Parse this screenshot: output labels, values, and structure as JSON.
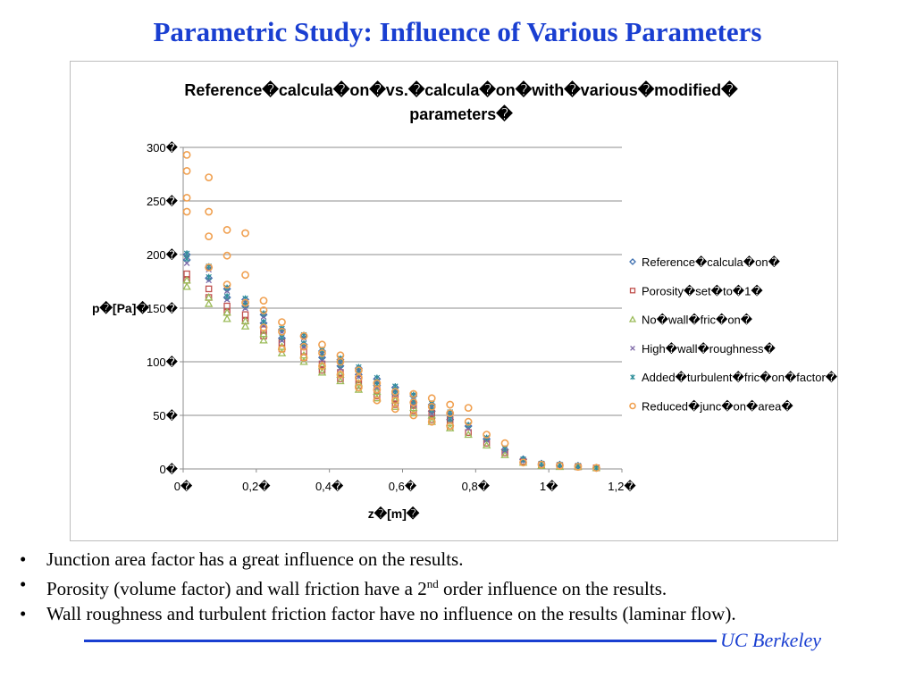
{
  "slide": {
    "title": "Parametric Study: Influence of Various Parameters",
    "bullets": [
      {
        "text_before": "Junction area factor has a great influence on the results.",
        "sup": "",
        "text_after": ""
      },
      {
        "text_before": "Porosity (volume factor) and wall friction have a 2",
        "sup": "nd",
        "text_after": " order influence on the results."
      },
      {
        "text_before": "Wall roughness and turbulent friction factor have no influence on the results (laminar flow).",
        "sup": "",
        "text_after": ""
      }
    ],
    "bullet_char": "•",
    "footer": "UC Berkeley",
    "brand_color": "#1a3fd1"
  },
  "chart_data": {
    "type": "scatter",
    "title_lines": [
      "Reference�calcula�on�vs.�calcula�on�with�various�modified�",
      "parameters�"
    ],
    "xlabel": "z�[m]�",
    "ylabel": "p�[Pa]�",
    "xlim": [
      0,
      1.2
    ],
    "ylim": [
      0,
      300
    ],
    "x_ticks": [
      0,
      0.2,
      0.4,
      0.6,
      0.8,
      1,
      1.2
    ],
    "x_tick_labels": [
      "0�",
      "0,2�",
      "0,4�",
      "0,6�",
      "0,8�",
      "1�",
      "1,2�"
    ],
    "y_ticks": [
      0,
      50,
      100,
      150,
      200,
      250,
      300
    ],
    "y_tick_labels": [
      "0�",
      "50�",
      "100�",
      "150�",
      "200�",
      "250�",
      "300�"
    ],
    "grid": "horizontal",
    "legend_position": "right",
    "series": [
      {
        "name": "Reference�calcula�on�",
        "marker": "diamond",
        "color": "#3d6fb0",
        "x": [
          0.01,
          0.01,
          0.07,
          0.07,
          0.12,
          0.12,
          0.17,
          0.17,
          0.22,
          0.22,
          0.27,
          0.27,
          0.33,
          0.33,
          0.38,
          0.38,
          0.43,
          0.43,
          0.48,
          0.48,
          0.53,
          0.53,
          0.58,
          0.58,
          0.63,
          0.63,
          0.68,
          0.68,
          0.73,
          0.73,
          0.78,
          0.83,
          0.88,
          0.93,
          0.98,
          1.03,
          1.08,
          1.13
        ],
        "y": [
          200,
          195,
          188,
          178,
          168,
          160,
          158,
          152,
          144,
          136,
          130,
          122,
          124,
          116,
          110,
          104,
          102,
          96,
          94,
          88,
          84,
          78,
          76,
          70,
          68,
          62,
          60,
          54,
          52,
          46,
          40,
          28,
          18,
          9,
          5,
          4,
          3,
          1
        ]
      },
      {
        "name": "Porosity�set�to�1�",
        "marker": "square",
        "color": "#c0504d",
        "x": [
          0.01,
          0.01,
          0.07,
          0.07,
          0.12,
          0.12,
          0.17,
          0.17,
          0.22,
          0.22,
          0.27,
          0.27,
          0.33,
          0.33,
          0.38,
          0.38,
          0.43,
          0.43,
          0.48,
          0.48,
          0.53,
          0.53,
          0.58,
          0.58,
          0.63,
          0.63,
          0.68,
          0.68,
          0.73,
          0.73,
          0.78,
          0.83,
          0.88,
          0.93,
          0.98,
          1.03,
          1.08,
          1.13
        ],
        "y": [
          182,
          176,
          168,
          160,
          152,
          146,
          144,
          138,
          130,
          124,
          118,
          112,
          110,
          104,
          98,
          92,
          90,
          84,
          84,
          78,
          74,
          68,
          66,
          60,
          60,
          54,
          52,
          46,
          46,
          40,
          34,
          24,
          15,
          7,
          4,
          3,
          2,
          1
        ]
      },
      {
        "name": "No�wall�fric�on�",
        "marker": "triangle",
        "color": "#9bbb59",
        "x": [
          0.01,
          0.01,
          0.07,
          0.07,
          0.12,
          0.12,
          0.17,
          0.17,
          0.22,
          0.22,
          0.27,
          0.27,
          0.33,
          0.33,
          0.38,
          0.38,
          0.43,
          0.43,
          0.48,
          0.48,
          0.53,
          0.53,
          0.58,
          0.58,
          0.63,
          0.63,
          0.68,
          0.68,
          0.73,
          0.73,
          0.78,
          0.83,
          0.88,
          0.93,
          0.98,
          1.03,
          1.08,
          1.13
        ],
        "y": [
          176,
          170,
          160,
          154,
          146,
          140,
          138,
          133,
          126,
          120,
          114,
          108,
          106,
          100,
          96,
          90,
          88,
          82,
          80,
          74,
          72,
          66,
          64,
          58,
          57,
          52,
          50,
          44,
          43,
          38,
          32,
          22,
          13,
          6,
          3,
          2,
          2,
          1
        ]
      },
      {
        "name": "High�wall�roughness�",
        "marker": "cross",
        "color": "#7f6aa8",
        "x": [
          0.01,
          0.01,
          0.07,
          0.07,
          0.12,
          0.12,
          0.17,
          0.17,
          0.22,
          0.22,
          0.27,
          0.27,
          0.33,
          0.33,
          0.38,
          0.38,
          0.43,
          0.43,
          0.48,
          0.48,
          0.53,
          0.53,
          0.58,
          0.58,
          0.63,
          0.63,
          0.68,
          0.68,
          0.73,
          0.73,
          0.78,
          0.83,
          0.88,
          0.93,
          0.98,
          1.03,
          1.08,
          1.13
        ],
        "y": [
          198,
          192,
          186,
          176,
          166,
          158,
          156,
          150,
          142,
          134,
          128,
          120,
          122,
          114,
          108,
          102,
          100,
          94,
          92,
          86,
          82,
          76,
          74,
          68,
          66,
          60,
          58,
          52,
          50,
          44,
          38,
          27,
          17,
          8,
          5,
          4,
          3,
          1
        ]
      },
      {
        "name": "Added�turbulent�fric�on�factor�",
        "marker": "star",
        "color": "#2f8f9a",
        "x": [
          0.01,
          0.01,
          0.07,
          0.07,
          0.12,
          0.12,
          0.17,
          0.17,
          0.22,
          0.22,
          0.27,
          0.27,
          0.33,
          0.33,
          0.38,
          0.38,
          0.43,
          0.43,
          0.48,
          0.48,
          0.53,
          0.53,
          0.58,
          0.58,
          0.63,
          0.63,
          0.68,
          0.68,
          0.73,
          0.73,
          0.78,
          0.83,
          0.88,
          0.93,
          0.98,
          1.03,
          1.08,
          1.13
        ],
        "y": [
          201,
          196,
          189,
          179,
          169,
          161,
          159,
          153,
          145,
          137,
          131,
          123,
          125,
          117,
          111,
          105,
          103,
          97,
          95,
          89,
          85,
          79,
          77,
          71,
          69,
          63,
          61,
          55,
          53,
          47,
          41,
          29,
          19,
          9,
          5,
          4,
          3,
          1
        ]
      },
      {
        "name": "Reduced�junc�on�area�",
        "marker": "circle",
        "color": "#f0a050",
        "x": [
          0.01,
          0.01,
          0.01,
          0.01,
          0.07,
          0.07,
          0.07,
          0.07,
          0.12,
          0.12,
          0.12,
          0.17,
          0.17,
          0.17,
          0.22,
          0.22,
          0.22,
          0.27,
          0.27,
          0.27,
          0.33,
          0.33,
          0.33,
          0.38,
          0.38,
          0.38,
          0.43,
          0.43,
          0.43,
          0.48,
          0.48,
          0.48,
          0.53,
          0.53,
          0.53,
          0.58,
          0.58,
          0.58,
          0.63,
          0.63,
          0.63,
          0.68,
          0.68,
          0.68,
          0.73,
          0.73,
          0.73,
          0.78,
          0.78,
          0.83,
          0.88,
          0.93,
          0.98,
          1.03,
          1.08,
          1.13
        ],
        "y": [
          293,
          278,
          253,
          240,
          272,
          240,
          217,
          188,
          223,
          199,
          172,
          220,
          181,
          155,
          157,
          148,
          132,
          137,
          128,
          112,
          124,
          114,
          104,
          116,
          108,
          96,
          106,
          100,
          88,
          92,
          85,
          76,
          80,
          74,
          64,
          72,
          64,
          56,
          70,
          62,
          50,
          66,
          58,
          44,
          60,
          52,
          40,
          57,
          44,
          32,
          24,
          6,
          4,
          3,
          2,
          1
        ]
      }
    ]
  }
}
